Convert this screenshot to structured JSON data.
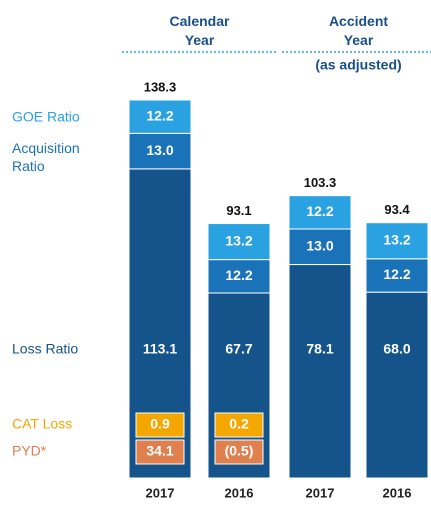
{
  "chart_data": {
    "type": "stacked_bar",
    "categories": [
      "2017",
      "2016",
      "2017",
      "2016"
    ],
    "groups": [
      {
        "label": "Calendar Year"
      },
      {
        "label": "Accident Year",
        "sublabel": "(as adjusted)"
      }
    ],
    "series": [
      {
        "name": "Loss Ratio",
        "color": "#14548a",
        "values": [
          113.1,
          67.7,
          78.1,
          68.0
        ],
        "value_labels": [
          "113.1",
          "67.7",
          "78.1",
          "68.0"
        ]
      },
      {
        "name": "Acquisition Ratio",
        "color": "#1a72b8",
        "values": [
          13.0,
          12.2,
          13.0,
          12.2
        ],
        "value_labels": [
          "13.0",
          "12.2",
          "13.0",
          "12.2"
        ]
      },
      {
        "name": "GOE Ratio",
        "color": "#2aa2e2",
        "values": [
          12.2,
          13.2,
          12.2,
          13.2
        ]
      }
    ],
    "components": [
      {
        "name": "CAT Loss",
        "color": "#f4a700",
        "values": [
          0.9,
          0.2,
          null,
          null
        ]
      },
      {
        "name": "PYD*",
        "color": "#e0804e",
        "values": [
          34.1,
          -0.5,
          null,
          null
        ],
        "value_labels": [
          "34.1",
          "(0.5)",
          null,
          null
        ]
      }
    ],
    "totals": [
      138.3,
      93.1,
      103.3,
      93.4
    ]
  }
}
